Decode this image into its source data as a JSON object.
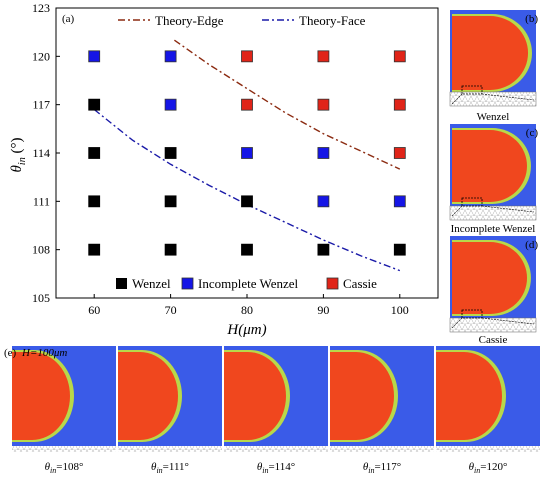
{
  "panel_labels": {
    "a": "(a)",
    "b": "(b)",
    "c": "(c)",
    "d": "(d)",
    "e": "(e)"
  },
  "side_panels": [
    {
      "tag": "(b)",
      "caption": "Wenzel"
    },
    {
      "tag": "(c)",
      "caption": "Incomplete Wenzel"
    },
    {
      "tag": "(d)",
      "caption": "Cassie"
    }
  ],
  "bottom_panel": {
    "tag": "(e)",
    "header": "H=100μm",
    "frames": [
      {
        "sym": "θ",
        "sub": "in",
        "value": "=108°"
      },
      {
        "sym": "θ",
        "sub": "in",
        "value": "=111°"
      },
      {
        "sym": "θ",
        "sub": "in",
        "value": "=114°"
      },
      {
        "sym": "θ",
        "sub": "in",
        "value": "=117°"
      },
      {
        "sym": "θ",
        "sub": "in",
        "value": "=120°"
      }
    ]
  },
  "colors": {
    "Wenzel": "#000000",
    "Incomplete Wenzel": "#1515e6",
    "Cassie": "#e02418",
    "Theory-Edge": "#8b2a10",
    "Theory-Face": "#1a1aa8",
    "sim_background": "#3a5be8",
    "sim_droplet": "#f0471e",
    "sim_rim": "#b8d84a"
  },
  "chart_data": {
    "type": "scatter",
    "xlabel": "H(μm)",
    "ylabel_symbol": "θ",
    "ylabel_sub": "in",
    "ylabel_unit": " (°)",
    "xlim": [
      55,
      105
    ],
    "ylim": [
      105,
      123
    ],
    "xticks": [
      60,
      70,
      80,
      90,
      100
    ],
    "yticks": [
      105,
      108,
      111,
      114,
      117,
      120,
      123
    ],
    "legend_position": "bottom",
    "series": [
      {
        "name": "Wenzel",
        "marker": "square",
        "points": [
          [
            60,
            108
          ],
          [
            70,
            108
          ],
          [
            80,
            108
          ],
          [
            90,
            108
          ],
          [
            100,
            108
          ],
          [
            60,
            111
          ],
          [
            70,
            111
          ],
          [
            80,
            111
          ],
          [
            60,
            114
          ],
          [
            70,
            114
          ],
          [
            60,
            117
          ]
        ]
      },
      {
        "name": "Incomplete Wenzel",
        "marker": "square",
        "points": [
          [
            90,
            111
          ],
          [
            100,
            111
          ],
          [
            80,
            114
          ],
          [
            90,
            114
          ],
          [
            70,
            117
          ],
          [
            60,
            120
          ],
          [
            70,
            120
          ]
        ]
      },
      {
        "name": "Cassie",
        "marker": "square",
        "points": [
          [
            100,
            114
          ],
          [
            80,
            117
          ],
          [
            90,
            117
          ],
          [
            100,
            117
          ],
          [
            80,
            120
          ],
          [
            90,
            120
          ],
          [
            100,
            120
          ]
        ]
      }
    ],
    "lines": [
      {
        "name": "Theory-Edge",
        "style": "dash-dot",
        "points": [
          [
            70.5,
            121
          ],
          [
            75,
            119.5
          ],
          [
            80,
            118
          ],
          [
            85,
            116.5
          ],
          [
            90,
            115.2
          ],
          [
            95,
            114.1
          ],
          [
            100,
            113
          ]
        ]
      },
      {
        "name": "Theory-Face",
        "style": "dash-dot",
        "points": [
          [
            60,
            116.7
          ],
          [
            65,
            114.8
          ],
          [
            70,
            113.3
          ],
          [
            75,
            112
          ],
          [
            80,
            110.8
          ],
          [
            85,
            109.7
          ],
          [
            90,
            108.6
          ],
          [
            95,
            107.6
          ],
          [
            100,
            106.7
          ]
        ]
      }
    ]
  }
}
